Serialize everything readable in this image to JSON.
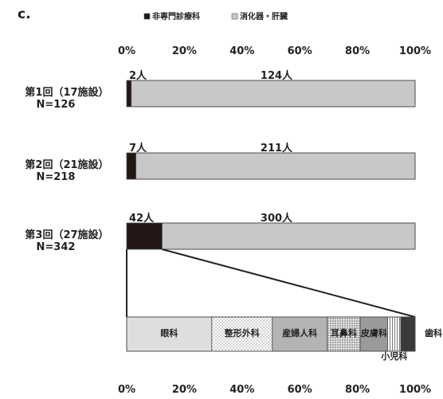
{
  "panel_label": "c.",
  "chart_data": [
    {
      "type": "bar",
      "orientation": "horizontal",
      "stacked": "percent",
      "legend": {
        "placement": "top",
        "entries": [
          {
            "label": "非専門診療科",
            "color": "#231815"
          },
          {
            "label": "消化器・肝臓",
            "color": "#c8c8c8"
          }
        ]
      },
      "x_ticks": [
        "0%",
        "20%",
        "40%",
        "60%",
        "80%",
        "100%"
      ],
      "xlim": [
        0,
        100
      ],
      "categories": [
        {
          "line1": "第1回（17施設）",
          "line2": "N=126"
        },
        {
          "line1": "第2回（21施設）",
          "line2": "N=218"
        },
        {
          "line1": "第3回（27施設）",
          "line2": "N=342"
        }
      ],
      "series": [
        {
          "name": "非専門診療科",
          "color": "#231815",
          "values": [
            2,
            7,
            42
          ],
          "labels": [
            "2人",
            "7人",
            "42人"
          ]
        },
        {
          "name": "消化器・肝臓",
          "color": "#c8c8c8",
          "values": [
            124,
            211,
            300
          ],
          "labels": [
            "124人",
            "211人",
            "300人"
          ]
        }
      ]
    },
    {
      "type": "bar",
      "orientation": "horizontal",
      "stacked": "percent",
      "x_ticks": [
        "0%",
        "20%",
        "40%",
        "60%",
        "80%",
        "100%"
      ],
      "xlim": [
        0,
        100
      ],
      "segments": [
        {
          "label": "眼科",
          "percent": 29.5,
          "color": "#dedede",
          "pattern": "solid"
        },
        {
          "label": "整形外科",
          "percent": 21.0,
          "color": "#ffffff",
          "pattern": "dots"
        },
        {
          "label": "産婦人科",
          "percent": 19.0,
          "color": "#b4b4b4",
          "pattern": "solid"
        },
        {
          "label": "耳鼻科",
          "percent": 11.5,
          "color": "#ffffff",
          "pattern": "dense-dots"
        },
        {
          "label": "皮膚科",
          "percent": 9.5,
          "color": "#9a9a9a",
          "pattern": "solid"
        },
        {
          "label": "小児科",
          "percent": 4.5,
          "color": "#ffffff",
          "pattern": "stripes"
        },
        {
          "label": "歯科",
          "percent": 5.0,
          "color": "#3a3a3a",
          "pattern": "solid"
        }
      ]
    }
  ]
}
